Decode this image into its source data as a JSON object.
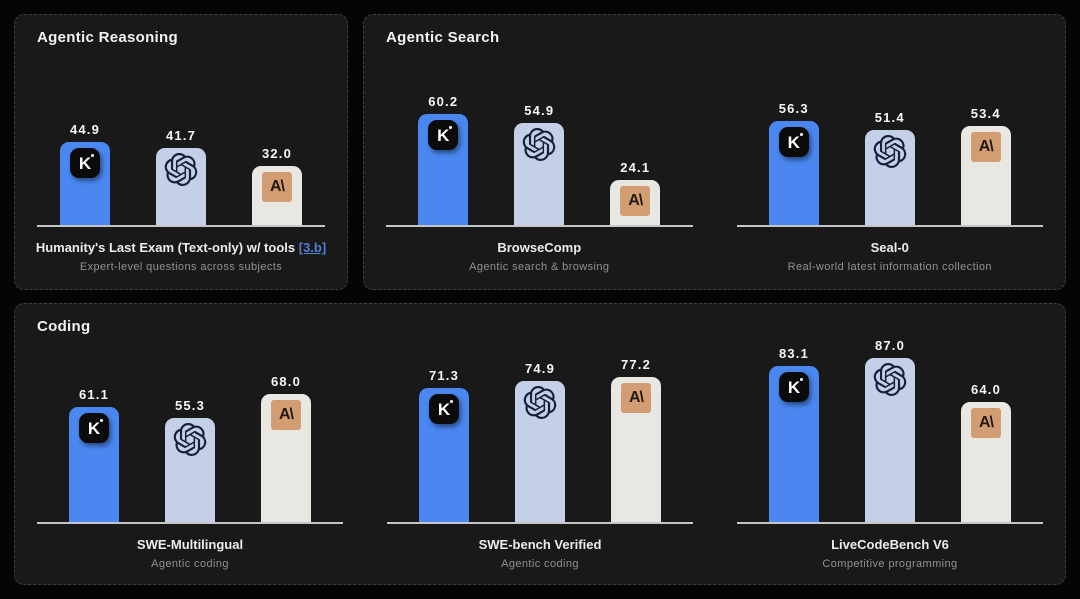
{
  "page": {
    "background": "#050505",
    "panel_background": "#191919",
    "panel_border": "#3e3e3e",
    "axis_color": "#c6c6c6",
    "value_text_color": "#f7f7f7",
    "link_color": "#4f7ecb"
  },
  "brands": [
    {
      "id": "kimi",
      "name": "Kimi",
      "icon": "kimi-logo-icon",
      "glyph": "K",
      "bar_color": "#4a87f0",
      "icon_bg": "#0b0b0b",
      "icon_fg": "#ffffff"
    },
    {
      "id": "openai",
      "name": "OpenAI",
      "icon": "openai-logo-icon",
      "glyph": "knot",
      "bar_color": "#c3d0e8",
      "icon_fg": "#16203c"
    },
    {
      "id": "anthropic",
      "name": "Anthropic",
      "icon": "anthropic-logo-icon",
      "glyph": "A\\",
      "bar_color": "#e9e7e1",
      "icon_bg": "#d39d74",
      "icon_fg": "#211a10"
    }
  ],
  "sections": [
    {
      "title": "Agentic Reasoning",
      "charts": [
        {
          "title": "Humanity's Last Exam (Text-only) w/ tools",
          "title_link": "[3.b]",
          "subtitle": "Expert-level questions across subjects",
          "values": [
            "44.9",
            "41.7",
            "32.0"
          ]
        }
      ]
    },
    {
      "title": "Agentic Search",
      "charts": [
        {
          "title": "BrowseComp",
          "subtitle": "Agentic search & browsing",
          "values": [
            "60.2",
            "54.9",
            "24.1"
          ]
        },
        {
          "title": "Seal-0",
          "subtitle": "Real-world latest information collection",
          "values": [
            "56.3",
            "51.4",
            "53.4"
          ]
        }
      ]
    },
    {
      "title": "Coding",
      "charts": [
        {
          "title": "SWE-Multilingual",
          "subtitle": "Agentic coding",
          "values": [
            "61.1",
            "55.3",
            "68.0"
          ]
        },
        {
          "title": "SWE-bench Verified",
          "subtitle": "Agentic coding",
          "values": [
            "71.3",
            "74.9",
            "77.2"
          ]
        },
        {
          "title": "LiveCodeBench V6",
          "subtitle": "Competitive programming",
          "values": [
            "83.1",
            "87.0",
            "64.0"
          ]
        }
      ]
    }
  ],
  "chart_data": [
    {
      "type": "bar",
      "panel": "Agentic Reasoning",
      "title": "Humanity's Last Exam (Text-only) w/ tools [3.b]",
      "subtitle": "Expert-level questions across subjects",
      "categories": [
        "Kimi",
        "OpenAI",
        "Anthropic"
      ],
      "values": [
        44.9,
        41.7,
        32.0
      ],
      "ylim": [
        0,
        100
      ],
      "grid": false,
      "legend": "icons-on-bars"
    },
    {
      "type": "bar",
      "panel": "Agentic Search",
      "title": "BrowseComp",
      "subtitle": "Agentic search & browsing",
      "categories": [
        "Kimi",
        "OpenAI",
        "Anthropic"
      ],
      "values": [
        60.2,
        54.9,
        24.1
      ],
      "ylim": [
        0,
        100
      ],
      "grid": false,
      "legend": "icons-on-bars"
    },
    {
      "type": "bar",
      "panel": "Agentic Search",
      "title": "Seal-0",
      "subtitle": "Real-world latest information collection",
      "categories": [
        "Kimi",
        "OpenAI",
        "Anthropic"
      ],
      "values": [
        56.3,
        51.4,
        53.4
      ],
      "ylim": [
        0,
        100
      ],
      "grid": false,
      "legend": "icons-on-bars"
    },
    {
      "type": "bar",
      "panel": "Coding",
      "title": "SWE-Multilingual",
      "subtitle": "Agentic coding",
      "categories": [
        "Kimi",
        "OpenAI",
        "Anthropic"
      ],
      "values": [
        61.1,
        55.3,
        68.0
      ],
      "ylim": [
        0,
        100
      ],
      "grid": false,
      "legend": "icons-on-bars"
    },
    {
      "type": "bar",
      "panel": "Coding",
      "title": "SWE-bench Verified",
      "subtitle": "Agentic coding",
      "categories": [
        "Kimi",
        "OpenAI",
        "Anthropic"
      ],
      "values": [
        71.3,
        74.9,
        77.2
      ],
      "ylim": [
        0,
        100
      ],
      "grid": false,
      "legend": "icons-on-bars"
    },
    {
      "type": "bar",
      "panel": "Coding",
      "title": "LiveCodeBench V6",
      "subtitle": "Competitive programming",
      "categories": [
        "Kimi",
        "OpenAI",
        "Anthropic"
      ],
      "values": [
        83.1,
        87.0,
        64.0
      ],
      "ylim": [
        0,
        100
      ],
      "grid": false,
      "legend": "icons-on-bars"
    }
  ]
}
